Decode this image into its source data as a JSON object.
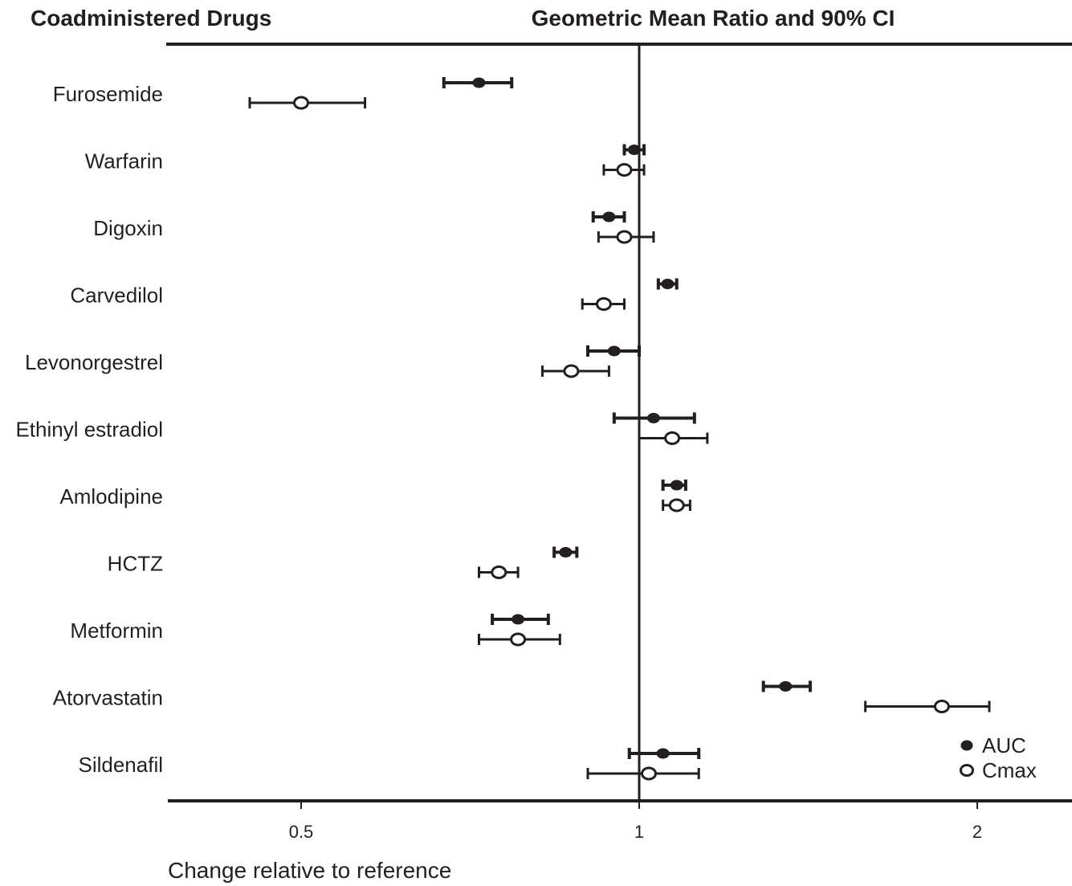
{
  "chart_data": {
    "type": "forest",
    "column_headers": {
      "left": "Coadministered Drugs",
      "right": "Geometric Mean Ratio and 90% CI"
    },
    "xlabel": "Change relative to reference",
    "x_scale": "log2",
    "xlim": [
      0.37,
      2.35
    ],
    "reference_line": 1,
    "xticks": [
      {
        "value": 0.5,
        "label": "0.5"
      },
      {
        "value": 1,
        "label": "1"
      },
      {
        "value": 2,
        "label": "2"
      }
    ],
    "legend": {
      "position": "bottom-right",
      "items": [
        {
          "name": "AUC",
          "marker": "filled-circle"
        },
        {
          "name": "Cmax",
          "marker": "open-circle"
        }
      ]
    },
    "series": [
      {
        "name": "AUC",
        "marker": "filled-circle",
        "points": [
          {
            "drug": "Furosemide",
            "gmr": 0.72,
            "ci": [
              0.67,
              0.77
            ]
          },
          {
            "drug": "Warfarin",
            "gmr": 0.99,
            "ci": [
              0.97,
              1.01
            ]
          },
          {
            "drug": "Digoxin",
            "gmr": 0.94,
            "ci": [
              0.91,
              0.97
            ]
          },
          {
            "drug": "Carvedilol",
            "gmr": 1.06,
            "ci": [
              1.04,
              1.08
            ]
          },
          {
            "drug": "Levonorgestrel",
            "gmr": 0.95,
            "ci": [
              0.9,
              1.0
            ]
          },
          {
            "drug": "Ethinyl estradiol",
            "gmr": 1.03,
            "ci": [
              0.95,
              1.12
            ]
          },
          {
            "drug": "Amlodipine",
            "gmr": 1.08,
            "ci": [
              1.05,
              1.1
            ]
          },
          {
            "drug": "HCTZ",
            "gmr": 0.86,
            "ci": [
              0.84,
              0.88
            ]
          },
          {
            "drug": "Metformin",
            "gmr": 0.78,
            "ci": [
              0.74,
              0.83
            ]
          },
          {
            "drug": "Atorvastatin",
            "gmr": 1.35,
            "ci": [
              1.29,
              1.42
            ]
          },
          {
            "drug": "Sildenafil",
            "gmr": 1.05,
            "ci": [
              0.98,
              1.13
            ]
          }
        ]
      },
      {
        "name": "Cmax",
        "marker": "open-circle",
        "points": [
          {
            "drug": "Furosemide",
            "gmr": 0.5,
            "ci": [
              0.45,
              0.57
            ]
          },
          {
            "drug": "Warfarin",
            "gmr": 0.97,
            "ci": [
              0.93,
              1.01
            ]
          },
          {
            "drug": "Digoxin",
            "gmr": 0.97,
            "ci": [
              0.92,
              1.03
            ]
          },
          {
            "drug": "Carvedilol",
            "gmr": 0.93,
            "ci": [
              0.89,
              0.97
            ]
          },
          {
            "drug": "Levonorgestrel",
            "gmr": 0.87,
            "ci": [
              0.82,
              0.94
            ]
          },
          {
            "drug": "Ethinyl estradiol",
            "gmr": 1.07,
            "ci": [
              1.0,
              1.15
            ]
          },
          {
            "drug": "Amlodipine",
            "gmr": 1.08,
            "ci": [
              1.05,
              1.11
            ]
          },
          {
            "drug": "HCTZ",
            "gmr": 0.75,
            "ci": [
              0.72,
              0.78
            ]
          },
          {
            "drug": "Metformin",
            "gmr": 0.78,
            "ci": [
              0.72,
              0.85
            ]
          },
          {
            "drug": "Atorvastatin",
            "gmr": 1.86,
            "ci": [
              1.59,
              2.05
            ]
          },
          {
            "drug": "Sildenafil",
            "gmr": 1.02,
            "ci": [
              0.9,
              1.13
            ]
          }
        ]
      }
    ]
  }
}
